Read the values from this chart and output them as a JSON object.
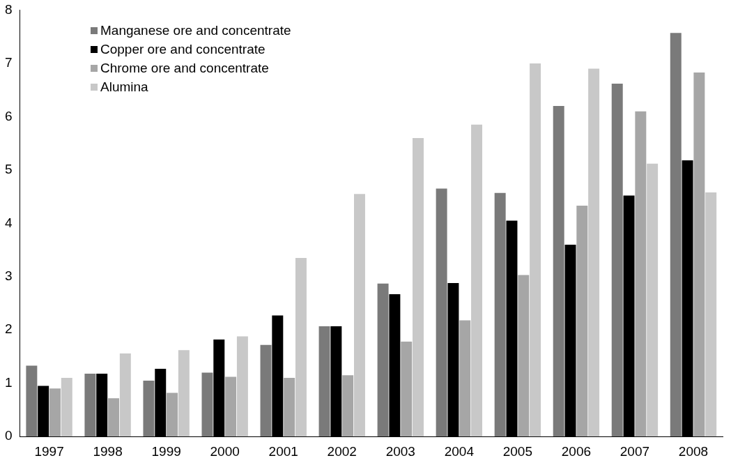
{
  "chart_data": {
    "type": "bar",
    "categories": [
      "1997",
      "1998",
      "1999",
      "2000",
      "2001",
      "2002",
      "2003",
      "2004",
      "2005",
      "2006",
      "2007",
      "2008"
    ],
    "series": [
      {
        "name": "Manganese ore and concentrate",
        "color": "#7a7a7a",
        "values": [
          1.33,
          1.18,
          1.05,
          1.2,
          1.72,
          2.07,
          2.87,
          4.65,
          4.57,
          6.2,
          6.62,
          7.57
        ]
      },
      {
        "name": "Copper ore and concentrate",
        "color": "#000000",
        "values": [
          0.95,
          1.18,
          1.27,
          1.82,
          2.27,
          2.07,
          2.67,
          2.88,
          4.05,
          3.6,
          4.52,
          5.18
        ]
      },
      {
        "name": "Chrome ore and concentrate",
        "color": "#a6a6a6",
        "values": [
          0.9,
          0.72,
          0.82,
          1.12,
          1.1,
          1.15,
          1.78,
          2.18,
          3.03,
          4.33,
          6.1,
          6.83
        ]
      },
      {
        "name": "Alumina",
        "color": "#c8c8c8",
        "values": [
          1.1,
          1.56,
          1.62,
          1.88,
          3.35,
          4.55,
          5.6,
          5.85,
          7.0,
          6.9,
          5.12,
          4.58
        ]
      }
    ],
    "ylim": [
      0,
      8
    ],
    "yticks": [
      0,
      1,
      2,
      3,
      4,
      5,
      6,
      7,
      8
    ],
    "grid": false,
    "legend": "top left"
  }
}
